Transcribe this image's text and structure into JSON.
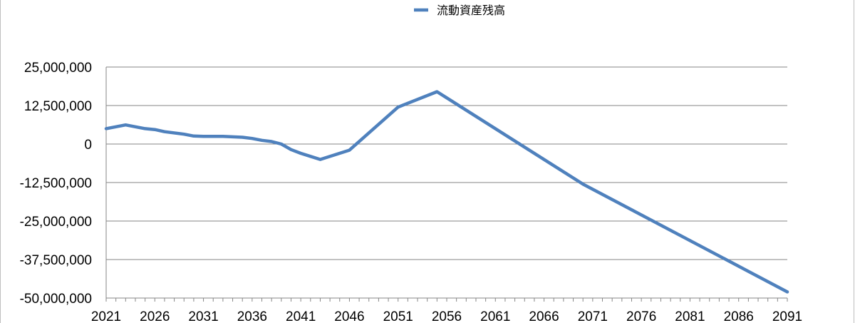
{
  "chart_data": {
    "type": "line",
    "title": "",
    "xlabel": "",
    "ylabel": "",
    "x_tick_labels": [
      "2021",
      "2026",
      "2031",
      "2036",
      "2041",
      "2046",
      "2051",
      "2056",
      "2061",
      "2066",
      "2071",
      "2076",
      "2081",
      "2086",
      "2091"
    ],
    "y_tick_labels": [
      "25,000,000",
      "12,500,000",
      "0",
      "-12,500,000",
      "-25,000,000",
      "-37,500,000",
      "-50,000,000"
    ],
    "y_ticks": [
      25000000,
      12500000,
      0,
      -12500000,
      -25000000,
      -37500000,
      -50000000
    ],
    "xlim": [
      2021,
      2091
    ],
    "ylim": [
      -50000000,
      25000000
    ],
    "grid": true,
    "legend_position": "top",
    "series": [
      {
        "name": "流動資産残高",
        "color": "#4f81bd",
        "x": [
          2021,
          2023,
          2025,
          2026,
          2027,
          2029,
          2030,
          2031,
          2033,
          2035,
          2036,
          2037,
          2038,
          2039,
          2040,
          2041,
          2042,
          2043,
          2046,
          2051,
          2055,
          2070,
          2091
        ],
        "y": [
          5000000,
          6200000,
          5000000,
          4700000,
          4000000,
          3200000,
          2600000,
          2500000,
          2500000,
          2200000,
          1800000,
          1200000,
          800000,
          0,
          -1800000,
          -3000000,
          -4000000,
          -5000000,
          -2000000,
          12000000,
          17000000,
          -13000000,
          -48000000
        ]
      }
    ]
  }
}
